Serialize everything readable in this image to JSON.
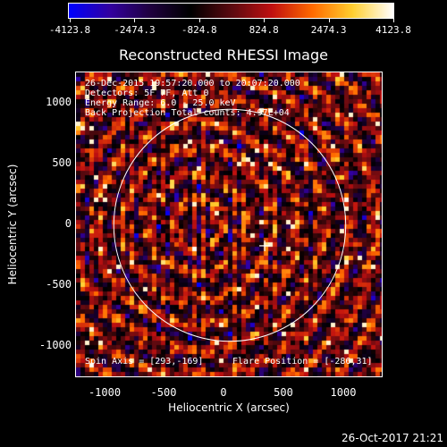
{
  "title": "Reconstructed RHESSI Image",
  "colorbar": {
    "labels": [
      "-4123.8",
      "-2474.3",
      "-824.8",
      "824.8",
      "2474.3",
      "4123.8"
    ],
    "range": [
      -4123.8,
      4123.8
    ]
  },
  "info": {
    "time_range": "26-Dec-2015 19:57:20.000 to 20:07:20.000",
    "detectors": "Detectors: 5F 7F, Att 0",
    "energy_range": "Energy Range: 6.0 - 25.0 keV",
    "method": "Back Projection    Total counts: 4.97E+04",
    "spin_axis": "Spin Axis = [293,-169]",
    "flare_position": "Flare Position = [-286,31]"
  },
  "axes": {
    "xlabel": "Heliocentric X (arcsec)",
    "ylabel": "Heliocentric Y (arcsec)",
    "xticks": [
      "-1000",
      "-500",
      "0",
      "500",
      "1000"
    ],
    "yticks": [
      "1000",
      "500",
      "0",
      "-500",
      "-1000"
    ],
    "xrange": [
      -1290,
      1290
    ],
    "yrange": [
      -1260,
      1260
    ]
  },
  "overlay": {
    "limb_radius_arcsec": 973,
    "cross_position_arcsec": [
      293,
      -169
    ],
    "limb_color": "#ffffff"
  },
  "colors": {
    "background": "#000000",
    "colortable": [
      "#0000ff",
      "#3300a0",
      "#200040",
      "#000000",
      "#5a0a10",
      "#c01010",
      "#ff6a00",
      "#ffd030",
      "#ffffff"
    ]
  },
  "footer": {
    "timestamp": "26-Oct-2017 21:21"
  }
}
